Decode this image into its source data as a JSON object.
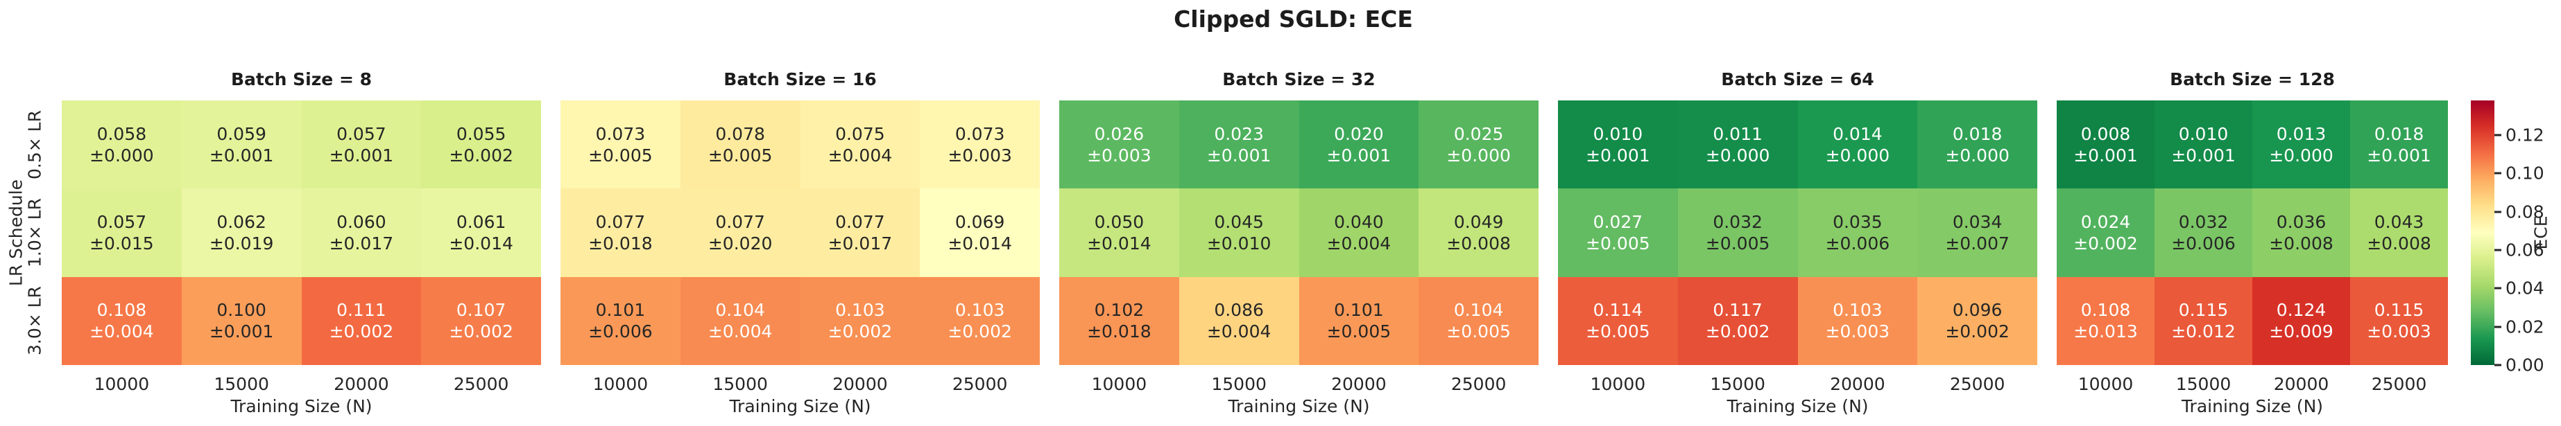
{
  "figure": {
    "title": "Clipped SGLD: ECE"
  },
  "chart_data": {
    "type": "heatmap",
    "x_categories": [
      "10000",
      "15000",
      "20000",
      "25000"
    ],
    "y_categories": [
      "0.5× LR",
      "1.0× LR",
      "3.0× LR"
    ],
    "xlabel": "Training Size (N)",
    "ylabel": "LR Schedule",
    "colormap": "RdYlGn_r",
    "vmin": 0.0,
    "vmax": 0.138,
    "value_format": "3-decimals with ± error on second line",
    "colorbar": {
      "label": "ECE",
      "tick_values": [
        0.12,
        0.1,
        0.08,
        0.06,
        0.04,
        0.02,
        0.0
      ],
      "tick_labels": [
        "0.12",
        "0.10",
        "0.08",
        "0.06",
        "0.04",
        "0.02",
        "0.00"
      ]
    },
    "panels": [
      {
        "title": "Batch Size = 8",
        "values": [
          [
            0.058,
            0.059,
            0.057,
            0.055
          ],
          [
            0.057,
            0.062,
            0.06,
            0.061
          ],
          [
            0.108,
            0.1,
            0.111,
            0.107
          ]
        ],
        "errors": [
          [
            0.0,
            0.001,
            0.001,
            0.002
          ],
          [
            0.015,
            0.019,
            0.017,
            0.014
          ],
          [
            0.004,
            0.001,
            0.002,
            0.002
          ]
        ]
      },
      {
        "title": "Batch Size = 16",
        "values": [
          [
            0.073,
            0.078,
            0.075,
            0.073
          ],
          [
            0.077,
            0.077,
            0.077,
            0.069
          ],
          [
            0.101,
            0.104,
            0.103,
            0.103
          ]
        ],
        "errors": [
          [
            0.005,
            0.005,
            0.004,
            0.003
          ],
          [
            0.018,
            0.02,
            0.017,
            0.014
          ],
          [
            0.006,
            0.004,
            0.002,
            0.002
          ]
        ]
      },
      {
        "title": "Batch Size = 32",
        "values": [
          [
            0.026,
            0.023,
            0.02,
            0.025
          ],
          [
            0.05,
            0.045,
            0.04,
            0.049
          ],
          [
            0.102,
            0.086,
            0.101,
            0.104
          ]
        ],
        "errors": [
          [
            0.003,
            0.001,
            0.001,
            0.0
          ],
          [
            0.014,
            0.01,
            0.004,
            0.008
          ],
          [
            0.018,
            0.004,
            0.005,
            0.005
          ]
        ]
      },
      {
        "title": "Batch Size = 64",
        "values": [
          [
            0.01,
            0.011,
            0.014,
            0.018
          ],
          [
            0.027,
            0.032,
            0.035,
            0.034
          ],
          [
            0.114,
            0.117,
            0.103,
            0.096
          ]
        ],
        "errors": [
          [
            0.001,
            0.0,
            0.0,
            0.0
          ],
          [
            0.005,
            0.005,
            0.006,
            0.007
          ],
          [
            0.005,
            0.002,
            0.003,
            0.002
          ]
        ]
      },
      {
        "title": "Batch Size = 128",
        "values": [
          [
            0.008,
            0.01,
            0.013,
            0.018
          ],
          [
            0.024,
            0.032,
            0.036,
            0.043
          ],
          [
            0.108,
            0.115,
            0.124,
            0.115
          ]
        ],
        "errors": [
          [
            0.001,
            0.001,
            0.0,
            0.001
          ],
          [
            0.002,
            0.006,
            0.008,
            0.008
          ],
          [
            0.013,
            0.012,
            0.009,
            0.003
          ]
        ]
      }
    ],
    "text_colors": {
      "dark": "#262626",
      "light": "#ffffff"
    }
  }
}
